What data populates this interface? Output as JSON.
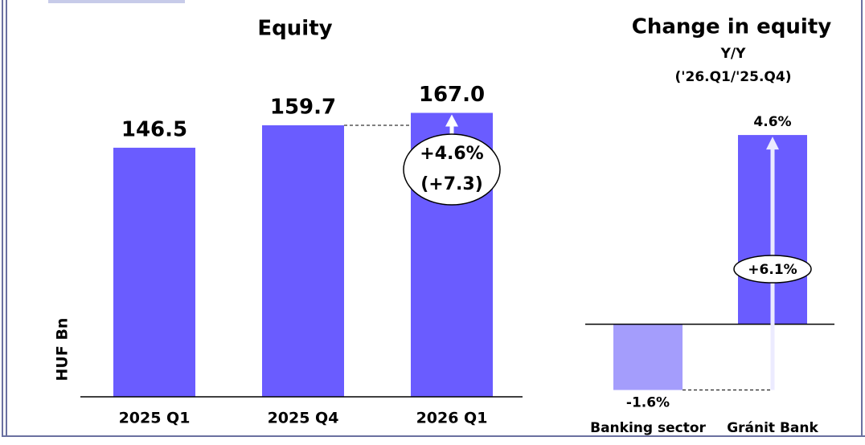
{
  "chart_data": [
    {
      "type": "bar",
      "title": "Equity",
      "y_label": "HUF Bn",
      "categories": [
        "2025 Q1",
        "2025 Q4",
        "2026 Q1"
      ],
      "values": [
        146.5,
        159.7,
        167.0
      ],
      "value_labels": [
        "146.5",
        "159.7",
        "167.0"
      ],
      "color": "#6a5cff",
      "ylim": [
        0,
        180
      ],
      "annotations": [
        "+4.6%",
        "(+7.3)"
      ]
    },
    {
      "type": "bar",
      "title": "Change in equity",
      "subtitle": [
        "Y/Y",
        "('26.Q1/'25.Q4)"
      ],
      "categories": [
        "Banking sector",
        "Gránit Bank"
      ],
      "values": [
        -1.6,
        4.6
      ],
      "value_labels": [
        "-1.6%",
        "4.6%"
      ],
      "colors": [
        "#a49dfc",
        "#6a5cff"
      ],
      "ylim": [
        -2,
        5.5
      ],
      "annotations": [
        "+6.1%"
      ]
    }
  ]
}
